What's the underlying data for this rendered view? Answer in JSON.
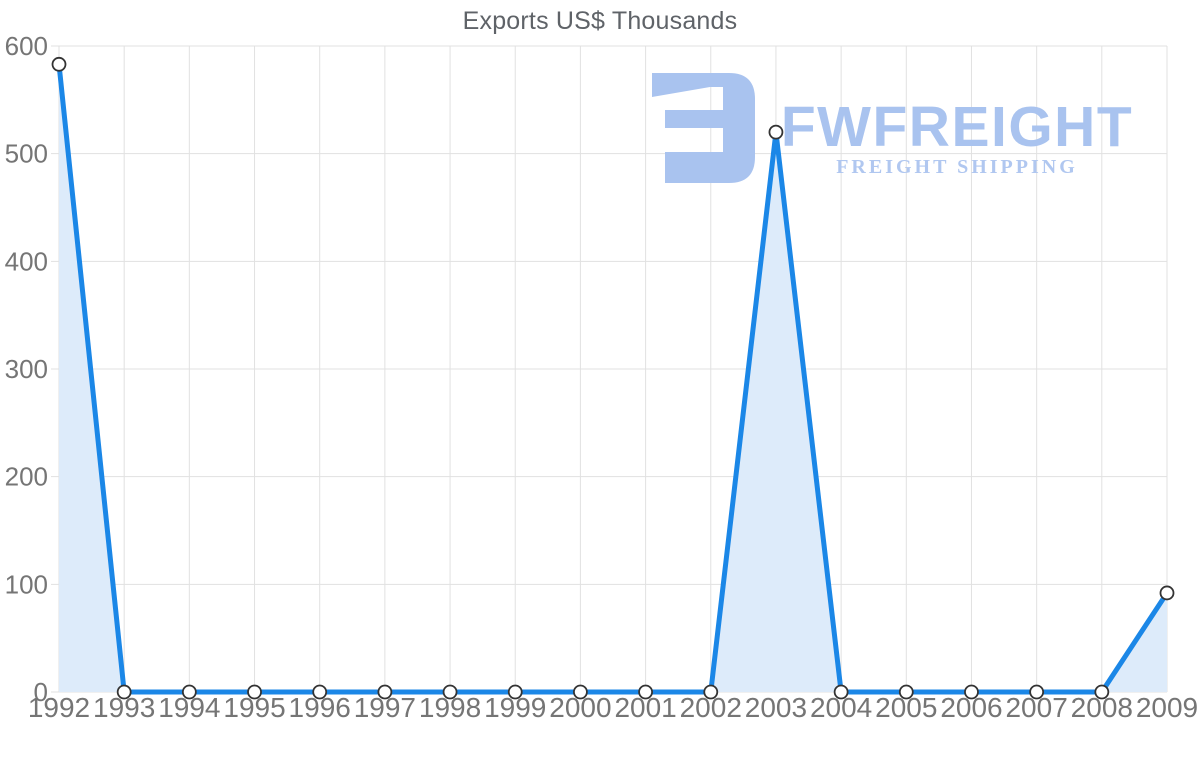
{
  "chart_data": {
    "type": "area",
    "title": "Exports US$ Thousands",
    "categories": [
      "1992",
      "1993",
      "1994",
      "1995",
      "1996",
      "1997",
      "1998",
      "1999",
      "2000",
      "2001",
      "2002",
      "2003",
      "2004",
      "2005",
      "2006",
      "2007",
      "2008",
      "2009"
    ],
    "series": [
      {
        "name": "Exports US$ Thousands",
        "values": [
          583,
          0,
          0,
          0,
          0,
          0,
          0,
          0,
          0,
          0,
          0,
          520,
          0,
          0,
          0,
          0,
          0,
          92
        ]
      }
    ],
    "xlabel": "",
    "ylabel": "",
    "ylim": [
      0,
      600
    ],
    "yticks": [
      0,
      100,
      200,
      300,
      400,
      500,
      600
    ],
    "ytick_step": 100,
    "grid": "both",
    "legend": "none",
    "marker": "open-circle",
    "line_width": 5
  },
  "watermark": {
    "brand": "FWFREIGHT",
    "tagline": "FREIGHT SHIPPING"
  },
  "colors": {
    "line": "#1b87e7",
    "area_fill": "#ddebfa",
    "marker_fill": "#ffffff",
    "marker_stroke": "#333333",
    "grid": "#e1e1e1",
    "tick_label": "#757575",
    "title": "#5f6368",
    "watermark": "#a9c3ef",
    "watermark_tagline": "#b0c7f0"
  }
}
